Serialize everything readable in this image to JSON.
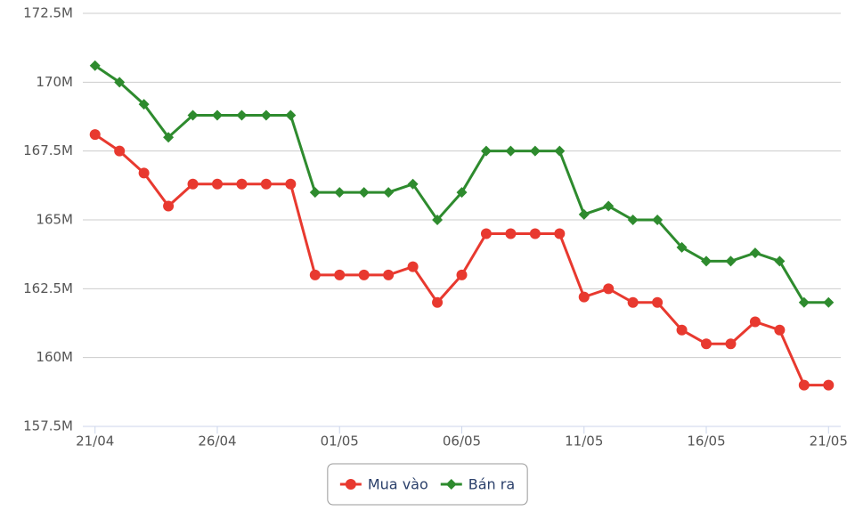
{
  "chart_data": {
    "type": "line",
    "categories": [
      "21/04",
      null,
      null,
      null,
      null,
      "26/04",
      null,
      null,
      null,
      null,
      "01/05",
      null,
      null,
      null,
      null,
      "06/05",
      null,
      null,
      null,
      null,
      "11/05",
      null,
      null,
      null,
      null,
      "16/05",
      null,
      null,
      null,
      null,
      "21/05"
    ],
    "series": [
      {
        "name": "Mua vào",
        "color": "#e8392f",
        "marker": "circle",
        "values": [
          168100000,
          167500000,
          166700000,
          165500000,
          166300000,
          166300000,
          166300000,
          166300000,
          166300000,
          163000000,
          163000000,
          163000000,
          163000000,
          163300000,
          162000000,
          163000000,
          164500000,
          164500000,
          164500000,
          164500000,
          162200000,
          162500000,
          162000000,
          162000000,
          161000000,
          160500000,
          160500000,
          161300000,
          161000000,
          159000000,
          159000000
        ]
      },
      {
        "name": "Bán ra",
        "color": "#2e8b2e",
        "marker": "diamond",
        "values": [
          170600000,
          170000000,
          169200000,
          168000000,
          168800000,
          168800000,
          168800000,
          168800000,
          168800000,
          166000000,
          166000000,
          166000000,
          166000000,
          166300000,
          165000000,
          166000000,
          167500000,
          167500000,
          167500000,
          167500000,
          165200000,
          165500000,
          165000000,
          165000000,
          164000000,
          163500000,
          163500000,
          163800000,
          163500000,
          162000000,
          162000000
        ]
      }
    ],
    "ylim": [
      157500000,
      172500000
    ],
    "yticks": [
      {
        "value": 157500000,
        "label": "157.5M"
      },
      {
        "value": 160000000,
        "label": "160M"
      },
      {
        "value": 162500000,
        "label": "162.5M"
      },
      {
        "value": 165000000,
        "label": "165M"
      },
      {
        "value": 167500000,
        "label": "167.5M"
      },
      {
        "value": 170000000,
        "label": "170M"
      },
      {
        "value": 172500000,
        "label": "172.5M"
      }
    ],
    "grid": true,
    "legend": "bottom"
  }
}
